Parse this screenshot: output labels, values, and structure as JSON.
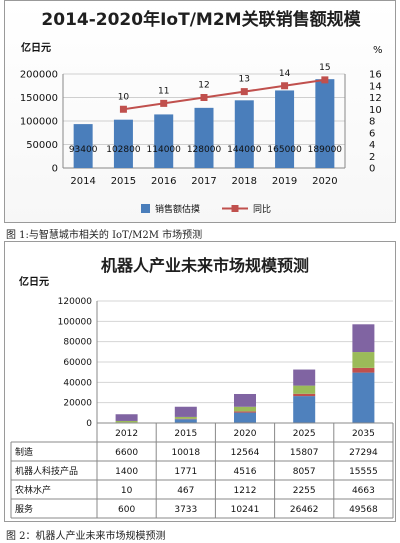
{
  "chart_data": [
    {
      "type": "bar",
      "title": "2014-2020年IoT/M2M关联销售额规模",
      "y_unit": "亿日元",
      "y2_unit": "%",
      "categories": [
        "2014",
        "2015",
        "2016",
        "2017",
        "2018",
        "2019",
        "2020"
      ],
      "ylim": [
        0,
        200000
      ],
      "y_ticks": [
        "0",
        "50000",
        "100000",
        "150000",
        "200000"
      ],
      "y2lim": [
        0,
        16
      ],
      "y2_ticks": [
        "0",
        "2",
        "4",
        "6",
        "8",
        "10",
        "12",
        "14",
        "16"
      ],
      "series": [
        {
          "name": "销售额估摸",
          "type": "bar",
          "values": [
            93400,
            102800,
            114000,
            128000,
            144000,
            165000,
            189000
          ],
          "labels": [
            "93400",
            "102800",
            "114000",
            "128000",
            "144000",
            "165000",
            "189000"
          ],
          "color": "#4a7ebb"
        },
        {
          "name": "同比",
          "type": "line",
          "axis": "right",
          "values": [
            null,
            10,
            11,
            12,
            13,
            14,
            15
          ],
          "labels": [
            "",
            "10",
            "11",
            "12",
            "13",
            "14",
            "15"
          ],
          "color": "#c0504d"
        }
      ],
      "grid": true,
      "legend": "bottom",
      "caption": "图 1:与智慧城市相关的 IoT/M2M 市场预测"
    },
    {
      "type": "bar",
      "stacked": true,
      "title": "机器人产业未来市场规模预测",
      "y_unit": "亿日元",
      "categories": [
        "2012",
        "2015",
        "2020",
        "2025",
        "2035"
      ],
      "ylim": [
        0,
        120000
      ],
      "y_ticks": [
        "0",
        "20000",
        "40000",
        "60000",
        "80000",
        "100000",
        "120000"
      ],
      "series": [
        {
          "name": "服务",
          "values": [
            600,
            3733,
            10241,
            26462,
            49568
          ],
          "color": "#4f81bd"
        },
        {
          "name": "农林水产",
          "values": [
            10,
            467,
            1212,
            2255,
            4663
          ],
          "color": "#c0504d"
        },
        {
          "name": "机器人科技产品",
          "values": [
            1400,
            1771,
            4516,
            8057,
            15555
          ],
          "color": "#9bbb59"
        },
        {
          "name": "制造",
          "values": [
            6600,
            10018,
            12564,
            15807,
            27294
          ],
          "color": "#8064a2"
        }
      ],
      "table_rows": [
        {
          "name": "制造",
          "cells": [
            "6600",
            "10018",
            "12564",
            "15807",
            "27294"
          ]
        },
        {
          "name": "机器人科技产品",
          "cells": [
            "1400",
            "1771",
            "4516",
            "8057",
            "15555"
          ]
        },
        {
          "name": "农林水产",
          "cells": [
            "10",
            "467",
            "1212",
            "2255",
            "4663"
          ]
        },
        {
          "name": "服务",
          "cells": [
            "600",
            "3733",
            "10241",
            "26462",
            "49568"
          ]
        }
      ],
      "grid": true,
      "caption": "图 2：机器人产业未来市场规模预测"
    }
  ]
}
